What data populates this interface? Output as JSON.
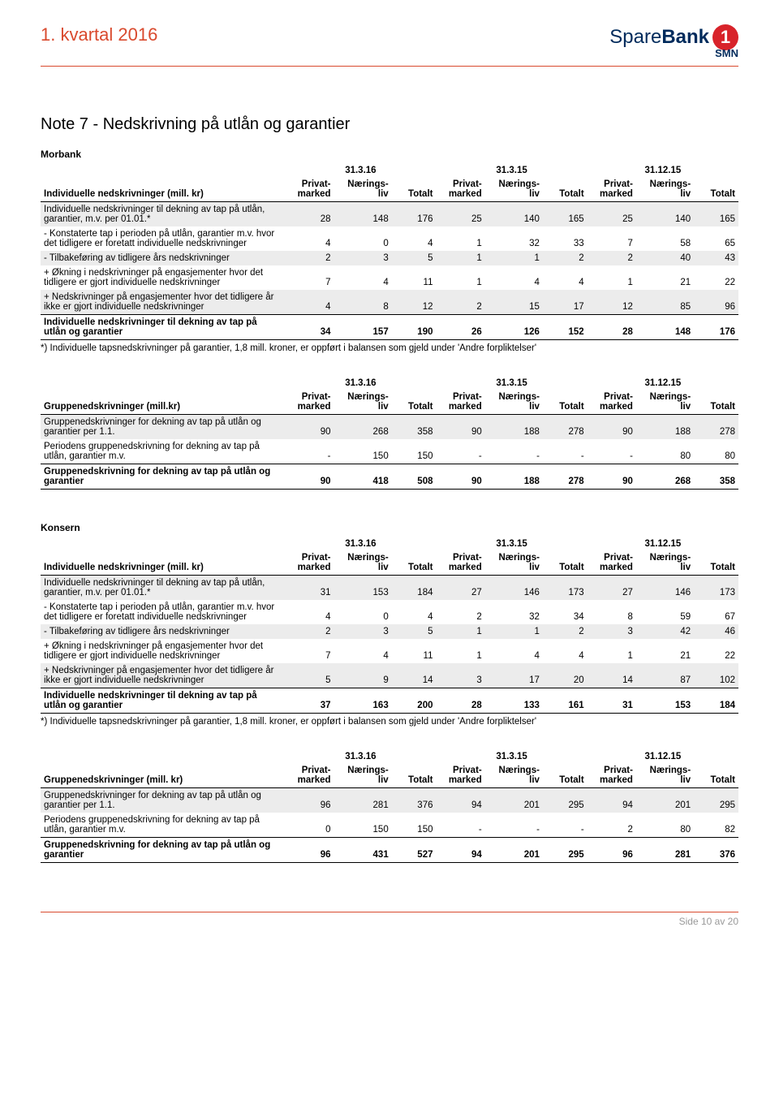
{
  "header": {
    "quarter": "1. kvartal 2016",
    "logo_spare": "Spare",
    "logo_bank": "Bank",
    "logo_one": "1",
    "logo_smn": "SMN"
  },
  "title": "Note 7 - Nedskrivning på utlån og garantier",
  "labels": {
    "morbank": "Morbank",
    "konsern": "Konsern",
    "privat": "Privat-marked",
    "naerings": "Nærings-liv",
    "totalt": "Totalt"
  },
  "periods": [
    "31.3.16",
    "31.3.15",
    "31.12.15"
  ],
  "footnote": "*) Individuelle tapsnedskrivninger på garantier, 1,8 mill. kroner, er oppført i balansen som gjeld under 'Andre forpliktelser'",
  "morbank_ind": {
    "caption": "Individuelle nedskrivninger (mill. kr)",
    "rows": [
      {
        "label": "Individuelle nedskrivninger til dekning av tap på utlån, garantier, m.v. per 01.01.*",
        "shade": true,
        "bold": false,
        "v": [
          "28",
          "148",
          "176",
          "25",
          "140",
          "165",
          "25",
          "140",
          "165"
        ]
      },
      {
        "label": "- Konstaterte tap i perioden på utlån, garantier m.v. hvor det tidligere er foretatt individuelle nedskrivninger",
        "shade": false,
        "bold": false,
        "v": [
          "4",
          "0",
          "4",
          "1",
          "32",
          "33",
          "7",
          "58",
          "65"
        ]
      },
      {
        "label": "- Tilbakeføring av tidligere års nedskrivninger",
        "shade": true,
        "bold": false,
        "v": [
          "2",
          "3",
          "5",
          "1",
          "1",
          "2",
          "2",
          "40",
          "43"
        ]
      },
      {
        "label": "+ Økning i nedskrivninger på engasjementer hvor det tidligere er gjort individuelle nedskrivninger",
        "shade": false,
        "bold": false,
        "v": [
          "7",
          "4",
          "11",
          "1",
          "4",
          "4",
          "1",
          "21",
          "22"
        ]
      },
      {
        "label": "+ Nedskrivninger på engasjementer hvor det tidligere år ikke er gjort individuelle nedskrivninger",
        "shade": true,
        "bold": false,
        "v": [
          "4",
          "8",
          "12",
          "2",
          "15",
          "17",
          "12",
          "85",
          "96"
        ]
      },
      {
        "label": "Individuelle nedskrivninger til dekning av tap på utlån og garantier",
        "shade": false,
        "bold": true,
        "v": [
          "34",
          "157",
          "190",
          "26",
          "126",
          "152",
          "28",
          "148",
          "176"
        ]
      }
    ]
  },
  "morbank_grp": {
    "caption": "Gruppenedskrivninger (mill.kr)",
    "rows": [
      {
        "label": "Gruppenedskrivninger for dekning av tap på utlån og garantier per 1.1.",
        "shade": true,
        "bold": false,
        "v": [
          "90",
          "268",
          "358",
          "90",
          "188",
          "278",
          "90",
          "188",
          "278"
        ]
      },
      {
        "label": "Periodens gruppenedskrivning for dekning av tap på utlån, garantier m.v.",
        "shade": false,
        "bold": false,
        "v": [
          "-",
          "150",
          "150",
          "-",
          "-",
          "-",
          "-",
          "80",
          "80"
        ]
      },
      {
        "label": "Gruppenedskrivning for dekning av tap på utlån og garantier",
        "shade": false,
        "bold": true,
        "v": [
          "90",
          "418",
          "508",
          "90",
          "188",
          "278",
          "90",
          "268",
          "358"
        ]
      }
    ]
  },
  "konsern_ind": {
    "caption": "Individuelle nedskrivninger (mill. kr)",
    "rows": [
      {
        "label": "Individuelle nedskrivninger til dekning av tap på utlån, garantier, m.v. per 01.01.*",
        "shade": true,
        "bold": false,
        "v": [
          "31",
          "153",
          "184",
          "27",
          "146",
          "173",
          "27",
          "146",
          "173"
        ]
      },
      {
        "label": "- Konstaterte tap i perioden på utlån, garantier m.v. hvor det tidligere er foretatt individuelle nedskrivninger",
        "shade": false,
        "bold": false,
        "v": [
          "4",
          "0",
          "4",
          "2",
          "32",
          "34",
          "8",
          "59",
          "67"
        ]
      },
      {
        "label": "- Tilbakeføring av tidligere års nedskrivninger",
        "shade": true,
        "bold": false,
        "v": [
          "2",
          "3",
          "5",
          "1",
          "1",
          "2",
          "3",
          "42",
          "46"
        ]
      },
      {
        "label": "+ Økning i nedskrivninger på engasjementer hvor det tidligere er gjort individuelle nedskrivninger",
        "shade": false,
        "bold": false,
        "v": [
          "7",
          "4",
          "11",
          "1",
          "4",
          "4",
          "1",
          "21",
          "22"
        ]
      },
      {
        "label": "+ Nedskrivninger på engasjementer hvor det tidligere år ikke er gjort individuelle nedskrivninger",
        "shade": true,
        "bold": false,
        "v": [
          "5",
          "9",
          "14",
          "3",
          "17",
          "20",
          "14",
          "87",
          "102"
        ]
      },
      {
        "label": "Individuelle nedskrivninger til dekning av tap på utlån og garantier",
        "shade": false,
        "bold": true,
        "v": [
          "37",
          "163",
          "200",
          "28",
          "133",
          "161",
          "31",
          "153",
          "184"
        ]
      }
    ]
  },
  "konsern_grp": {
    "caption": "Gruppenedskrivninger (mill. kr)",
    "rows": [
      {
        "label": "Gruppenedskrivninger for dekning av tap på utlån og garantier per 1.1.",
        "shade": true,
        "bold": false,
        "v": [
          "96",
          "281",
          "376",
          "94",
          "201",
          "295",
          "94",
          "201",
          "295"
        ]
      },
      {
        "label": "Periodens gruppenedskrivning for dekning av tap på utlån, garantier m.v.",
        "shade": false,
        "bold": false,
        "v": [
          "0",
          "150",
          "150",
          "-",
          "-",
          "-",
          "2",
          "80",
          "82"
        ]
      },
      {
        "label": "Gruppenedskrivning for dekning av tap på utlån og garantier",
        "shade": false,
        "bold": true,
        "v": [
          "96",
          "431",
          "527",
          "94",
          "201",
          "295",
          "96",
          "281",
          "376"
        ]
      }
    ]
  },
  "footer": {
    "page": "Side 10 av 20"
  }
}
